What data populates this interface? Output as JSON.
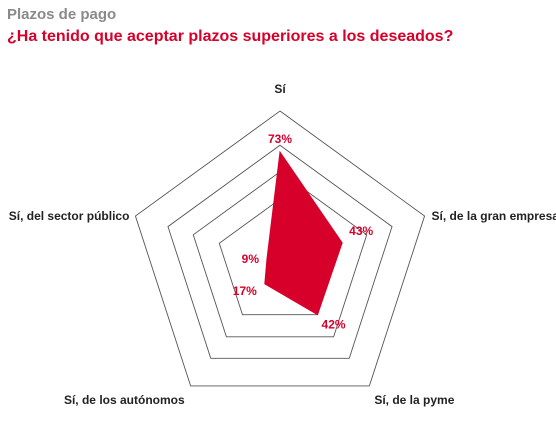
{
  "header": {
    "title": "Plazos de pago",
    "subtitle": "¿Ha tenido que aceptar plazos superiores a los deseados?"
  },
  "colors": {
    "series": "#d6002a",
    "grid": "#555555",
    "title": "#8a8a8a"
  },
  "chart_data": {
    "type": "radar",
    "title": "Plazos de pago",
    "subtitle": "¿Ha tenido que aceptar plazos superiores a los deseados?",
    "categories": [
      "Sí",
      "Sí, de la gran empresa",
      "Sí, de la pyme",
      "Sí, de los autónomos",
      "Sí, del sector público"
    ],
    "value_labels": [
      "73%",
      "43%",
      "42%",
      "17%",
      "9%"
    ],
    "series": [
      {
        "values": [
          73,
          43,
          42,
          17,
          9
        ]
      }
    ],
    "rlim": [
      0,
      100
    ],
    "grid": true,
    "legend": "none"
  }
}
